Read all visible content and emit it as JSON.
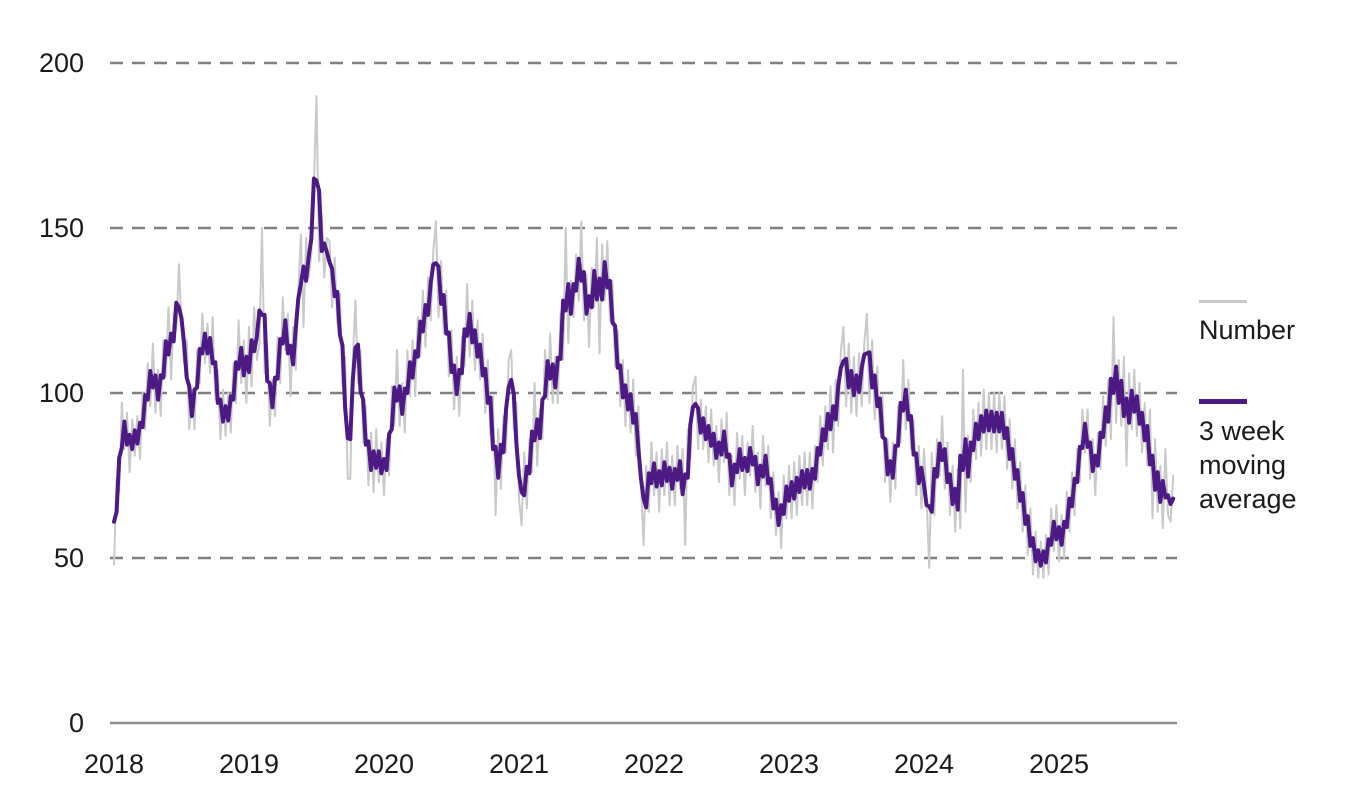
{
  "chart_data": {
    "type": "line",
    "title": "",
    "xlabel": "",
    "ylabel": "",
    "x_axis": {
      "tick_labels": [
        "2018",
        "2019",
        "2020",
        "2021",
        "2022",
        "2023",
        "2024",
        "2025"
      ],
      "start_year": 2018,
      "points_per_year": 52,
      "unit": "week"
    },
    "y_axis": {
      "tick_labels": [
        "0",
        "50",
        "100",
        "150",
        "200"
      ],
      "tick_values": [
        0,
        50,
        100,
        150,
        200
      ],
      "gridline_values": [
        50,
        100,
        150,
        200
      ],
      "range": [
        0,
        210
      ],
      "gridline_style": "dashed"
    },
    "legend": {
      "position": "right"
    },
    "series": [
      {
        "name": "Number",
        "color": "#c9c9c9",
        "stroke_width": 2,
        "weekly_values": [
          48,
          74,
          70,
          97,
          83,
          94,
          76,
          92,
          81,
          93,
          80,
          100,
          89,
          109,
          96,
          115,
          94,
          107,
          93,
          116,
          105,
          126,
          104,
          124,
          119,
          139,
          120,
          109,
          116,
          89,
          101,
          89,
          113,
          103,
          124,
          109,
          121,
          106,
          123,
          98,
          107,
          86,
          101,
          87,
          100,
          88,
          109,
          97,
          122,
          103,
          116,
          97,
          120,
          102,
          126,
          110,
          115,
          150,
          106,
          115,
          90,
          104,
          93,
          117,
          103,
          129,
          113,
          124,
          99,
          120,
          107,
          131,
          148,
          120,
          147,
          135,
          142,
          163,
          190,
          140,
          154,
          135,
          147,
          146,
          126,
          141,
          121,
          130,
          102,
          111,
          74,
          74,
          110,
          128,
          103,
          113,
          85,
          96,
          72,
          88,
          70,
          89,
          73,
          85,
          69,
          86,
          75,
          102,
          90,
          113,
          90,
          103,
          88,
          113,
          99,
          116,
          99,
          123,
          111,
          131,
          114,
          135,
          122,
          143,
          152,
          123,
          140,
          118,
          131,
          105,
          119,
          95,
          111,
          93,
          117,
          108,
          133,
          111,
          128,
          107,
          122,
          104,
          118,
          94,
          110,
          87,
          99,
          63,
          89,
          71,
          93,
          82,
          110,
          113,
          89,
          97,
          68,
          60,
          82,
          65,
          86,
          76,
          103,
          78,
          95,
          86,
          113,
          98,
          118,
          97,
          111,
          97,
          124,
          110,
          150,
          115,
          134,
          123,
          142,
          128,
          152,
          122,
          136,
          114,
          138,
          126,
          147,
          112,
          145,
          128,
          146,
          122,
          134,
          108,
          119,
          96,
          110,
          90,
          107,
          88,
          104,
          81,
          96,
          72,
          54,
          78,
          64,
          85,
          69,
          82,
          64,
          83,
          69,
          85,
          66,
          81,
          66,
          84,
          71,
          83,
          54,
          89,
          80,
          102,
          105,
          83,
          98,
          83,
          96,
          79,
          95,
          78,
          90,
          73,
          92,
          79,
          94,
          69,
          81,
          66,
          88,
          74,
          87,
          69,
          85,
          75,
          90,
          70,
          82,
          65,
          87,
          72,
          84,
          62,
          76,
          57,
          70,
          53,
          75,
          62,
          78,
          62,
          79,
          63,
          81,
          66,
          82,
          66,
          82,
          65,
          84,
          73,
          93,
          78,
          96,
          83,
          102,
          82,
          104,
          90,
          113,
          120,
          96,
          115,
          94,
          111,
          93,
          112,
          96,
          115,
          124,
          97,
          116,
          92,
          108,
          88,
          99,
          73,
          86,
          67,
          85,
          71,
          96,
          85,
          110,
          89,
          104,
          83,
          92,
          69,
          84,
          65,
          83,
          68,
          47,
          82,
          63,
          86,
          75,
          93,
          71,
          85,
          63,
          78,
          58,
          77,
          59,
          107,
          64,
          87,
          73,
          95,
          80,
          97,
          81,
          101,
          83,
          100,
          83,
          100,
          82,
          100,
          83,
          99,
          77,
          92,
          71,
          86,
          65,
          79,
          58,
          72,
          51,
          65,
          45,
          58,
          44,
          55,
          44,
          57,
          45,
          65,
          52,
          66,
          49,
          63,
          50,
          70,
          58,
          76,
          63,
          83,
          73,
          95,
          82,
          95,
          74,
          86,
          69,
          88,
          77,
          99,
          84,
          104,
          86,
          123,
          91,
          110,
          90,
          111,
          78,
          106,
          89,
          107,
          87,
          103,
          82,
          97,
          78,
          95,
          62,
          86,
          64,
          78,
          59,
          83,
          63,
          61,
          75
        ]
      },
      {
        "name": "3 week moving average",
        "color": "#4d1a85",
        "stroke_width": 4,
        "derived_from": "Number",
        "window_weeks": 3
      }
    ]
  },
  "legend": {
    "number_label": "Number",
    "ma_label": "3 week\nmoving\naverage"
  },
  "colors": {
    "number_line": "#c9c9c9",
    "moving_average_line": "#4d1a85",
    "gridline": "#7f7f7f",
    "axis_line": "#8a8a8a",
    "text": "#1a1a1a",
    "background": "#ffffff"
  }
}
